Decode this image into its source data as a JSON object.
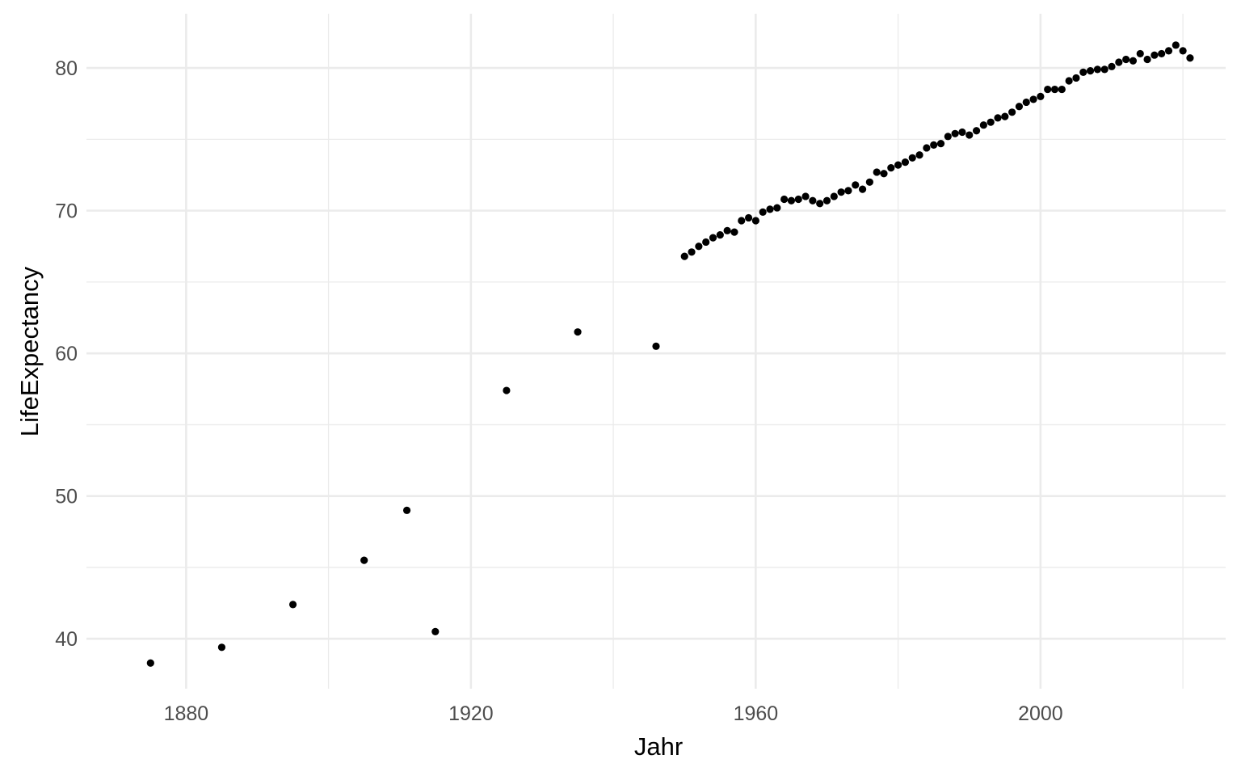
{
  "chart_data": {
    "type": "scatter",
    "xlabel": "Jahr",
    "ylabel": "LifeExpectancy",
    "xlim": [
      1866,
      2026
    ],
    "ylim": [
      36.5,
      83.8
    ],
    "x_ticks": [
      1880,
      1920,
      1960,
      2000
    ],
    "y_ticks": [
      40,
      50,
      60,
      70,
      80
    ],
    "grid": true,
    "point_color": "#000000",
    "points": [
      [
        1875,
        38.3
      ],
      [
        1885,
        39.4
      ],
      [
        1895,
        42.4
      ],
      [
        1905,
        45.5
      ],
      [
        1911,
        49.0
      ],
      [
        1915,
        40.5
      ],
      [
        1925,
        57.4
      ],
      [
        1935,
        61.5
      ],
      [
        1946,
        60.5
      ],
      [
        1950,
        66.8
      ],
      [
        1951,
        67.1
      ],
      [
        1952,
        67.5
      ],
      [
        1953,
        67.8
      ],
      [
        1954,
        68.1
      ],
      [
        1955,
        68.3
      ],
      [
        1956,
        68.6
      ],
      [
        1957,
        68.5
      ],
      [
        1958,
        69.3
      ],
      [
        1959,
        69.5
      ],
      [
        1960,
        69.3
      ],
      [
        1961,
        69.9
      ],
      [
        1962,
        70.1
      ],
      [
        1963,
        70.2
      ],
      [
        1964,
        70.8
      ],
      [
        1965,
        70.7
      ],
      [
        1966,
        70.8
      ],
      [
        1967,
        71.0
      ],
      [
        1968,
        70.7
      ],
      [
        1969,
        70.5
      ],
      [
        1970,
        70.7
      ],
      [
        1971,
        71.0
      ],
      [
        1972,
        71.3
      ],
      [
        1973,
        71.4
      ],
      [
        1974,
        71.8
      ],
      [
        1975,
        71.5
      ],
      [
        1976,
        72.0
      ],
      [
        1977,
        72.7
      ],
      [
        1978,
        72.6
      ],
      [
        1979,
        73.0
      ],
      [
        1980,
        73.2
      ],
      [
        1981,
        73.4
      ],
      [
        1982,
        73.7
      ],
      [
        1983,
        73.9
      ],
      [
        1984,
        74.4
      ],
      [
        1985,
        74.6
      ],
      [
        1986,
        74.7
      ],
      [
        1987,
        75.2
      ],
      [
        1988,
        75.4
      ],
      [
        1989,
        75.5
      ],
      [
        1990,
        75.3
      ],
      [
        1991,
        75.6
      ],
      [
        1992,
        76.0
      ],
      [
        1993,
        76.2
      ],
      [
        1994,
        76.5
      ],
      [
        1995,
        76.6
      ],
      [
        1996,
        76.9
      ],
      [
        1997,
        77.3
      ],
      [
        1998,
        77.6
      ],
      [
        1999,
        77.8
      ],
      [
        2000,
        78.0
      ],
      [
        2001,
        78.5
      ],
      [
        2002,
        78.5
      ],
      [
        2003,
        78.5
      ],
      [
        2004,
        79.1
      ],
      [
        2005,
        79.3
      ],
      [
        2006,
        79.7
      ],
      [
        2007,
        79.8
      ],
      [
        2008,
        79.9
      ],
      [
        2009,
        79.9
      ],
      [
        2010,
        80.1
      ],
      [
        2011,
        80.4
      ],
      [
        2012,
        80.6
      ],
      [
        2013,
        80.5
      ],
      [
        2014,
        81.0
      ],
      [
        2015,
        80.6
      ],
      [
        2016,
        80.9
      ],
      [
        2017,
        81.0
      ],
      [
        2018,
        81.2
      ],
      [
        2019,
        81.6
      ],
      [
        2020,
        81.2
      ],
      [
        2021,
        80.7
      ]
    ]
  }
}
